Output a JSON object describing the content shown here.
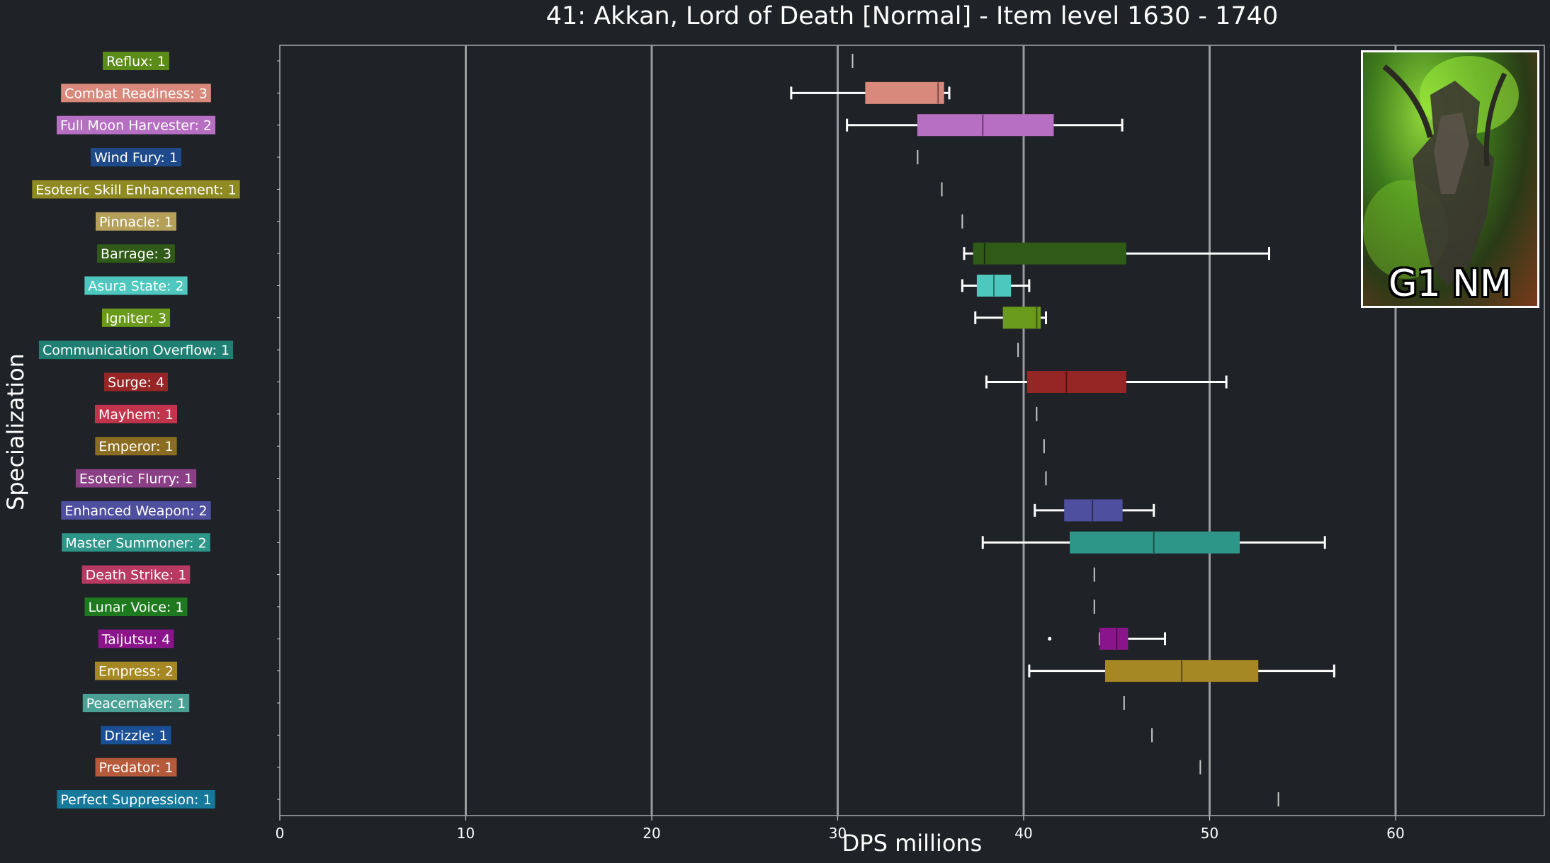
{
  "title": "41: Akkan, Lord of Death [Normal] - Item level 1630 - 1740",
  "thumbnail": {
    "label": "G1 NM"
  },
  "chart_data": {
    "type": "box",
    "orientation": "horizontal",
    "title": "41: Akkan, Lord of Death [Normal] - Item level 1630 - 1740",
    "xlabel": "DPS millions",
    "ylabel": "Specialization",
    "xlim": [
      0,
      68
    ],
    "xticks": [
      0,
      10,
      20,
      30,
      40,
      50,
      60
    ],
    "grid": "vertical",
    "categories": [
      {
        "label": "Reflux: 1",
        "color": "#5b8c1a",
        "min": 30.8,
        "q1": 30.8,
        "median": 30.8,
        "q3": 30.8,
        "max": 30.8
      },
      {
        "label": "Combat Readiness: 3",
        "color": "#d9897b",
        "min": 27.5,
        "q1": 31.5,
        "median": 35.4,
        "q3": 35.7,
        "max": 36.0
      },
      {
        "label": "Full Moon Harvester: 2",
        "color": "#b66fc2",
        "min": 30.5,
        "q1": 34.3,
        "median": 37.8,
        "q3": 41.6,
        "max": 45.3
      },
      {
        "label": "Wind Fury: 1",
        "color": "#1e4a8a",
        "min": 34.3,
        "q1": 34.3,
        "median": 34.3,
        "q3": 34.3,
        "max": 34.3
      },
      {
        "label": "Esoteric Skill Enhancement: 1",
        "color": "#8f8a22",
        "min": 35.6,
        "q1": 35.6,
        "median": 35.6,
        "q3": 35.6,
        "max": 35.6
      },
      {
        "label": "Pinnacle: 1",
        "color": "#b5a05a",
        "min": 36.7,
        "q1": 36.7,
        "median": 36.7,
        "q3": 36.7,
        "max": 36.7
      },
      {
        "label": "Barrage: 3",
        "color": "#2f5a17",
        "min": 36.8,
        "q1": 37.3,
        "median": 37.9,
        "q3": 45.5,
        "max": 53.2
      },
      {
        "label": "Asura State: 2",
        "color": "#4ec8bf",
        "min": 36.7,
        "q1": 37.5,
        "median": 38.4,
        "q3": 39.3,
        "max": 40.3
      },
      {
        "label": "Igniter: 3",
        "color": "#6a9a1b",
        "min": 37.4,
        "q1": 38.9,
        "median": 40.7,
        "q3": 40.9,
        "max": 41.2
      },
      {
        "label": "Communication Overflow: 1",
        "color": "#1f7f73",
        "min": 39.7,
        "q1": 39.7,
        "median": 39.7,
        "q3": 39.7,
        "max": 39.7
      },
      {
        "label": "Surge: 4",
        "color": "#962626",
        "min": 38.0,
        "q1": 40.2,
        "median": 42.3,
        "q3": 45.5,
        "max": 50.9
      },
      {
        "label": "Mayhem: 1",
        "color": "#c2344b",
        "min": 40.7,
        "q1": 40.7,
        "median": 40.7,
        "q3": 40.7,
        "max": 40.7
      },
      {
        "label": "Emperor: 1",
        "color": "#8a6d22",
        "min": 41.1,
        "q1": 41.1,
        "median": 41.1,
        "q3": 41.1,
        "max": 41.1
      },
      {
        "label": "Esoteric Flurry: 1",
        "color": "#8a3f86",
        "min": 41.2,
        "q1": 41.2,
        "median": 41.2,
        "q3": 41.2,
        "max": 41.2
      },
      {
        "label": "Enhanced Weapon: 2",
        "color": "#4e4f9e",
        "min": 40.6,
        "q1": 42.2,
        "median": 43.7,
        "q3": 45.3,
        "max": 47.0
      },
      {
        "label": "Master Summoner: 2",
        "color": "#2e9688",
        "min": 37.8,
        "q1": 42.5,
        "median": 47.0,
        "q3": 51.6,
        "max": 56.2
      },
      {
        "label": "Death Strike: 1",
        "color": "#b83a62",
        "min": 43.8,
        "q1": 43.8,
        "median": 43.8,
        "q3": 43.8,
        "max": 43.8
      },
      {
        "label": "Lunar Voice: 1",
        "color": "#1f7a1f",
        "min": 43.8,
        "q1": 43.8,
        "median": 43.8,
        "q3": 43.8,
        "max": 43.8
      },
      {
        "label": "Taijutsu: 4",
        "color": "#8a158a",
        "min": 44.1,
        "q1": 44.1,
        "median": 45.0,
        "q3": 45.6,
        "max": 47.6,
        "outliers": [
          41.4
        ]
      },
      {
        "label": "Empress: 2",
        "color": "#a58724",
        "min": 40.3,
        "q1": 44.4,
        "median": 48.5,
        "q3": 52.6,
        "max": 56.7
      },
      {
        "label": "Peacemaker: 1",
        "color": "#4aa094",
        "min": 45.4,
        "q1": 45.4,
        "median": 45.4,
        "q3": 45.4,
        "max": 45.4
      },
      {
        "label": "Drizzle: 1",
        "color": "#1a4f94",
        "min": 46.9,
        "q1": 46.9,
        "median": 46.9,
        "q3": 46.9,
        "max": 46.9
      },
      {
        "label": "Predator: 1",
        "color": "#b55a3b",
        "min": 49.5,
        "q1": 49.5,
        "median": 49.5,
        "q3": 49.5,
        "max": 49.5
      },
      {
        "label": "Perfect Suppression: 1",
        "color": "#16799c",
        "min": 53.7,
        "q1": 53.7,
        "median": 53.7,
        "q3": 53.7,
        "max": 53.7
      }
    ]
  }
}
